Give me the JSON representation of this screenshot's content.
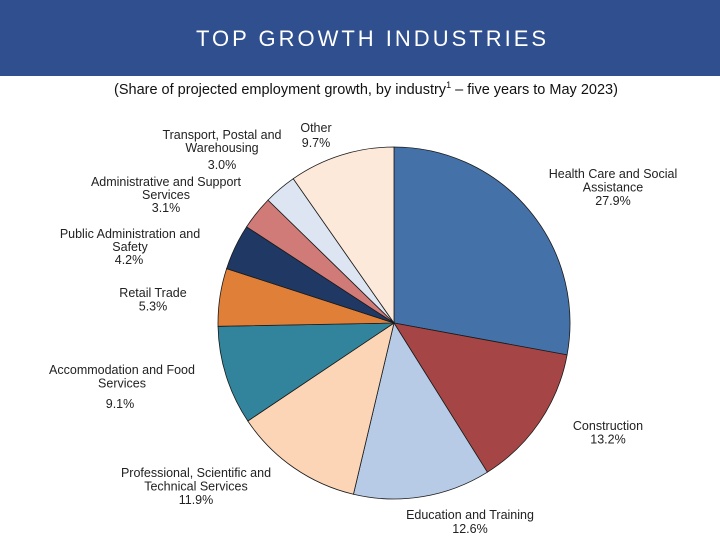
{
  "header": {
    "title": "TOP GROWTH INDUSTRIES"
  },
  "chart_data": {
    "type": "pie",
    "subtitle_before": "(Share of projected employment growth, by industry",
    "subtitle_sup": "1",
    "subtitle_after": " – five years to May 2023)",
    "start": "12 o'clock, clockwise",
    "slices": [
      {
        "label_lines": [
          "Health Care and Social",
          "Assistance"
        ],
        "value_text": "27.9%",
        "value": 27.9,
        "color": "#4472a8"
      },
      {
        "label_lines": [
          "Construction"
        ],
        "value_text": "13.2%",
        "value": 13.2,
        "color": "#a64545"
      },
      {
        "label_lines": [
          "Education and Training"
        ],
        "value_text": "12.6%",
        "value": 12.6,
        "color": "#b7cbe6"
      },
      {
        "label_lines": [
          "Professional, Scientific and",
          "Technical Services"
        ],
        "value_text": "11.9%",
        "value": 11.9,
        "color": "#fbd5b5"
      },
      {
        "label_lines": [
          "Accommodation and Food",
          "Services"
        ],
        "value_text": "9.1%",
        "value": 9.1,
        "color": "#31849b"
      },
      {
        "label_lines": [
          "Retail Trade"
        ],
        "value_text": "5.3%",
        "value": 5.3,
        "color": "#e07f38"
      },
      {
        "label_lines": [
          "Public Administration and",
          "Safety"
        ],
        "value_text": "4.2%",
        "value": 4.2,
        "color": "#1f3864"
      },
      {
        "label_lines": [
          "Administrative and Support",
          "Services"
        ],
        "value_text": "3.1%",
        "value": 3.1,
        "color": "#d07b78"
      },
      {
        "label_lines": [
          "Transport, Postal and",
          "Warehousing"
        ],
        "value_text": "3.0%",
        "value": 3.0,
        "color": "#dce5f1"
      },
      {
        "label_lines": [
          "Other"
        ],
        "value_text": "9.7%",
        "value": 9.7,
        "color": "#fde9d9"
      }
    ]
  }
}
